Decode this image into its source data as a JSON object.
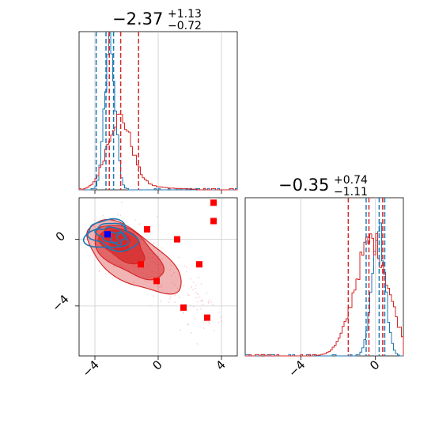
{
  "chart_data": {
    "type": "corner",
    "colors": {
      "reference": "#1f77b4",
      "posterior": "#d62728",
      "marker_red": "#ff0000",
      "marker_blue": "#0000ff"
    },
    "grid": true,
    "panels": [
      {
        "id": "hist-1",
        "type": "histogram",
        "title_value": "−2.37",
        "title_upper": "+1.13",
        "title_lower": "−0.72",
        "xlim": [
          -5.0,
          5.0
        ],
        "x_ticks": [
          -4,
          0,
          4
        ],
        "quantiles_red": [
          -3.09,
          -2.37,
          -1.24
        ],
        "quantiles_blue": [
          -3.92,
          -3.3,
          -2.82
        ],
        "series": [
          {
            "name": "",
            "color": "#1f77b4",
            "mode": {
              "center": -3.05,
              "width": 0.33,
              "peak": 0.94
            }
          },
          {
            "name": "",
            "color": "#d62728",
            "mode": {
              "center": -2.5,
              "width": 0.75,
              "peak": 0.45,
              "tail": 0.09
            }
          }
        ]
      },
      {
        "id": "hist-2",
        "type": "histogram",
        "title_value": "−0.35",
        "title_upper": "+0.74",
        "title_lower": "−1.11",
        "xlim": [
          -7.0,
          1.5
        ],
        "x_ticks": [
          -4,
          0
        ],
        "quantiles_red": [
          -1.46,
          -0.35,
          0.39
        ],
        "quantiles_blue": [
          -0.5,
          0.2,
          0.5
        ],
        "series": [
          {
            "name": "",
            "color": "#1f77b4",
            "mode": {
              "center": 0.15,
              "width": 0.35,
              "peak": 0.83
            }
          },
          {
            "name": "",
            "color": "#d62728",
            "mode": {
              "center": -0.2,
              "width": 0.9,
              "peak": 0.73
            }
          }
        ]
      },
      {
        "id": "scatter-2d",
        "type": "scatter",
        "xlim": [
          -5.0,
          5.0
        ],
        "ylim": [
          -7.0,
          2.5
        ],
        "x_ticks": [
          -4,
          0,
          4
        ],
        "y_ticks": [
          0,
          -4
        ],
        "red_markers": [
          {
            "x": 3.5,
            "y": 2.2
          },
          {
            "x": 3.5,
            "y": 1.1
          },
          {
            "x": -0.7,
            "y": 0.6
          },
          {
            "x": 1.2,
            "y": 0.0
          },
          {
            "x": -1.1,
            "y": -1.5
          },
          {
            "x": 2.6,
            "y": -1.5
          },
          {
            "x": -0.1,
            "y": -2.5
          },
          {
            "x": 1.6,
            "y": -4.1
          },
          {
            "x": 3.1,
            "y": -4.7
          }
        ],
        "blue_markers": [
          {
            "x": -3.2,
            "y": 0.3
          }
        ]
      }
    ]
  }
}
